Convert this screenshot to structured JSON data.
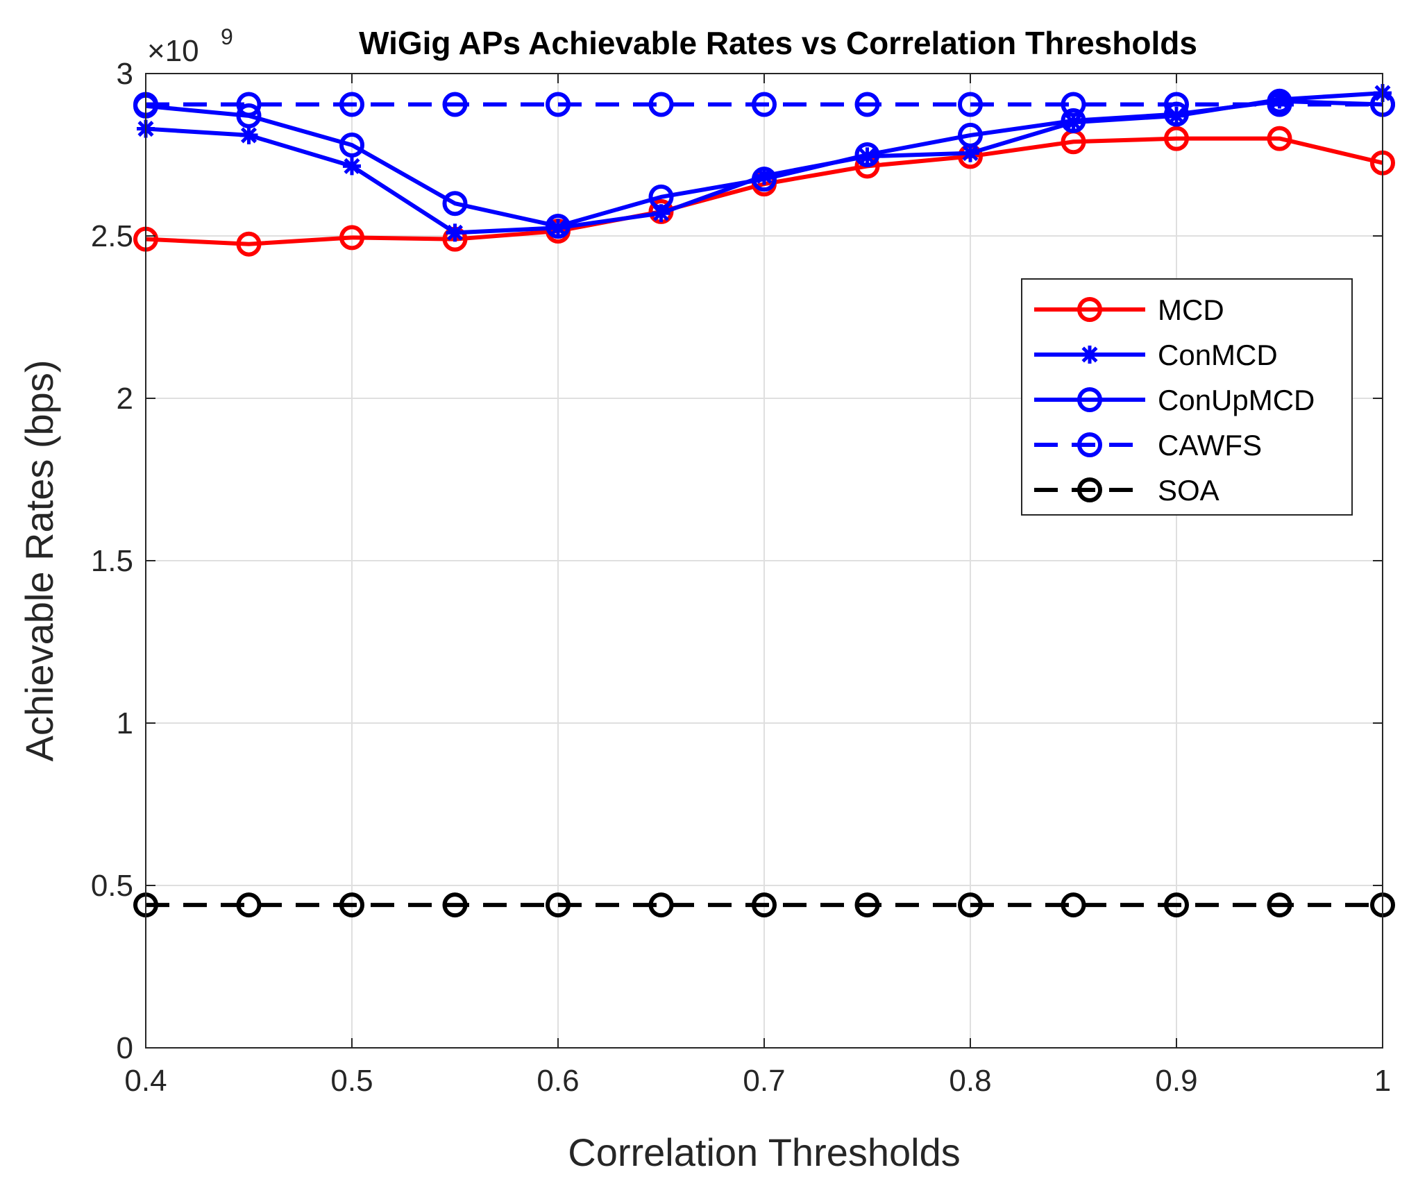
{
  "chart_data": {
    "type": "line",
    "title": "WiGig APs Achievable Rates vs Correlation Thresholds",
    "xlabel": "Correlation Thresholds",
    "ylabel": "Achievable Rates (bps)",
    "y_exponent_base": "×10",
    "y_exponent_power": "9",
    "xlim": [
      0.4,
      1.0
    ],
    "ylim": [
      0,
      3
    ],
    "grid": true,
    "legend_position": "right",
    "x": [
      0.4,
      0.45,
      0.5,
      0.55,
      0.6,
      0.65,
      0.7,
      0.75,
      0.8,
      0.85,
      0.9,
      0.95,
      1.0
    ],
    "x_ticks": [
      0.4,
      0.5,
      0.6,
      0.7,
      0.8,
      0.9,
      1.0
    ],
    "x_tick_labels": [
      "0.4",
      "0.5",
      "0.6",
      "0.7",
      "0.8",
      "0.9",
      "1"
    ],
    "y_ticks": [
      0,
      0.5,
      1,
      1.5,
      2,
      2.5,
      3
    ],
    "y_tick_labels": [
      "0",
      "0.5",
      "1",
      "1.5",
      "2",
      "2.5",
      "3"
    ],
    "series": [
      {
        "name": "MCD",
        "color": "#ff0000",
        "dash": "solid",
        "marker": "circle",
        "values": [
          2.49,
          2.475,
          2.495,
          2.49,
          2.515,
          2.575,
          2.66,
          2.715,
          2.745,
          2.79,
          2.8,
          2.8,
          2.725
        ]
      },
      {
        "name": "ConMCD",
        "color": "#0000ff",
        "dash": "solid",
        "marker": "asterisk",
        "values": [
          2.83,
          2.81,
          2.715,
          2.51,
          2.525,
          2.57,
          2.685,
          2.745,
          2.755,
          2.85,
          2.87,
          2.92,
          2.94
        ]
      },
      {
        "name": "ConUpMCD",
        "color": "#0000ff",
        "dash": "solid",
        "marker": "circle",
        "values": [
          2.9,
          2.87,
          2.78,
          2.6,
          2.53,
          2.62,
          2.675,
          2.75,
          2.81,
          2.855,
          2.875,
          2.915,
          2.905
        ]
      },
      {
        "name": "CAWFS",
        "color": "#0000ff",
        "dash": "dashed",
        "marker": "circle",
        "values": [
          2.905,
          2.905,
          2.905,
          2.905,
          2.905,
          2.905,
          2.905,
          2.905,
          2.905,
          2.905,
          2.905,
          2.905,
          2.905
        ]
      },
      {
        "name": "SOA",
        "color": "#000000",
        "dash": "dashed",
        "marker": "circle",
        "values": [
          0.44,
          0.44,
          0.44,
          0.44,
          0.44,
          0.44,
          0.44,
          0.44,
          0.44,
          0.44,
          0.44,
          0.44,
          0.44
        ]
      }
    ]
  }
}
